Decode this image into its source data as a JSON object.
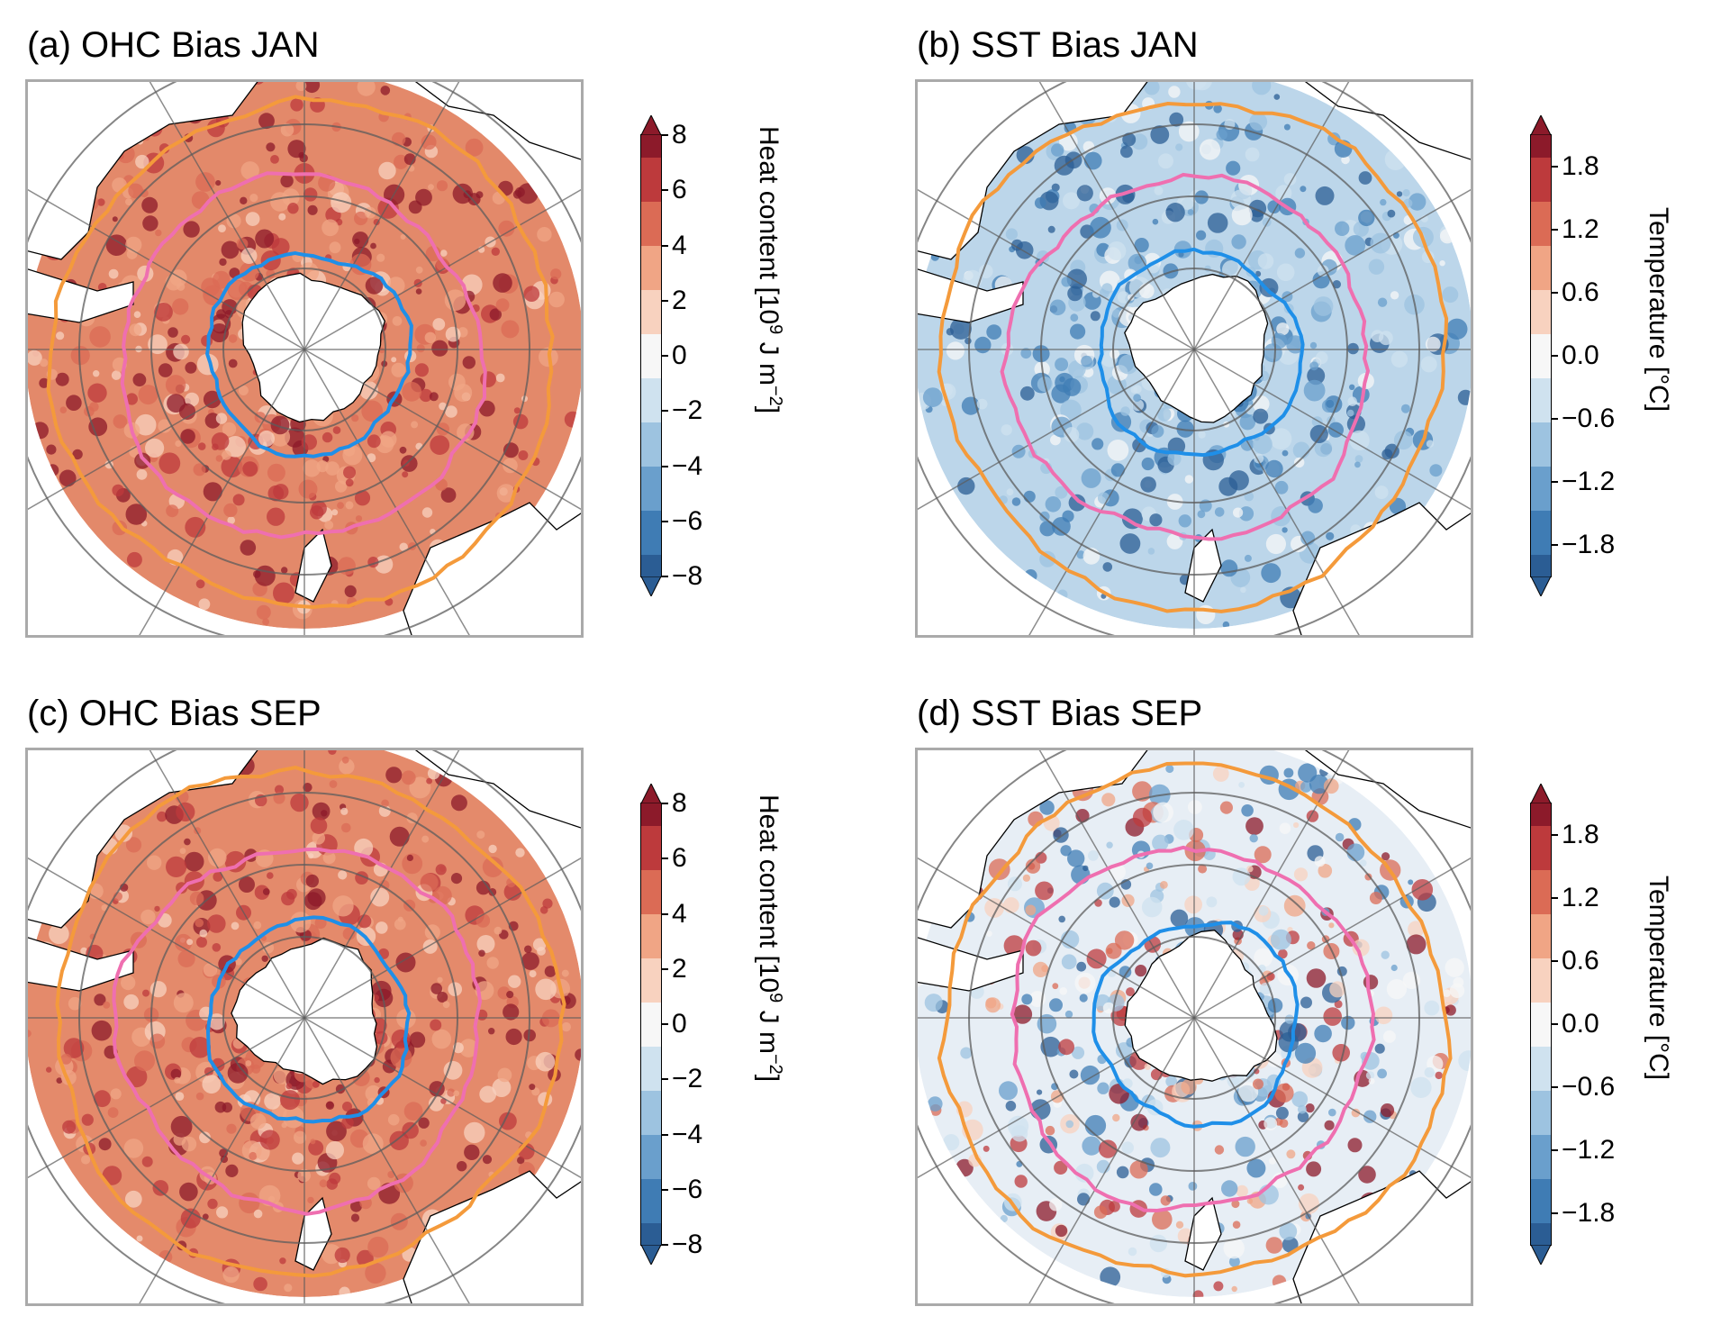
{
  "panels": [
    {
      "id": "a",
      "title": "(a) OHC Bias JAN",
      "variable": "OHC",
      "month": "JAN",
      "field_tint": "#e3896a",
      "colorbar": {
        "label_main": "Heat content [10",
        "label_sup1": "9",
        "label_mid": " J m",
        "label_sup2": "−2",
        "label_end": "]",
        "ticks": [
          "8",
          "6",
          "4",
          "2",
          "0",
          "−2",
          "−4",
          "−6",
          "−8"
        ],
        "range": [
          -8,
          8
        ]
      }
    },
    {
      "id": "b",
      "title": "(b) SST Bias JAN",
      "variable": "SST",
      "month": "JAN",
      "field_tint": "#bcd6ea",
      "colorbar": {
        "label_main": "Temperature [°C]",
        "label_sup1": "",
        "label_mid": "",
        "label_sup2": "",
        "label_end": "",
        "ticks": [
          "1.8",
          "1.2",
          "0.6",
          "0.0",
          "−0.6",
          "−1.2",
          "−1.8"
        ],
        "range": [
          -2.1,
          2.1
        ]
      }
    },
    {
      "id": "c",
      "title": "(c) OHC Bias SEP",
      "variable": "OHC",
      "month": "SEP",
      "field_tint": "#e48a6b",
      "colorbar": {
        "label_main": "Heat content [10",
        "label_sup1": "9",
        "label_mid": " J m",
        "label_sup2": "−2",
        "label_end": "]",
        "ticks": [
          "8",
          "6",
          "4",
          "2",
          "0",
          "−2",
          "−4",
          "−6",
          "−8"
        ],
        "range": [
          -8,
          8
        ]
      }
    },
    {
      "id": "d",
      "title": "(d) SST Bias SEP",
      "variable": "SST",
      "month": "SEP",
      "field_tint": "#e7eef5",
      "colorbar": {
        "label_main": "Temperature [°C]",
        "label_sup1": "",
        "label_mid": "",
        "label_sup2": "",
        "label_end": "",
        "ticks": [
          "1.8",
          "1.2",
          "0.6",
          "0.0",
          "−0.6",
          "−1.2",
          "−1.8"
        ],
        "range": [
          -2.1,
          2.1
        ]
      }
    }
  ],
  "colors": {
    "front_outer": "#f49a3b",
    "front_middle": "#ef6fb0",
    "front_inner": "#1f8fe8",
    "land": "#ffffff",
    "grid": "#5c5c5c",
    "rdbu": [
      "#2b5d94",
      "#3f7cb4",
      "#6a9fcc",
      "#9dc3e0",
      "#cfe2ef",
      "#f7f7f7",
      "#f8d2bf",
      "#f0a585",
      "#db6b55",
      "#bd3a3c",
      "#8c1a2a"
    ]
  }
}
